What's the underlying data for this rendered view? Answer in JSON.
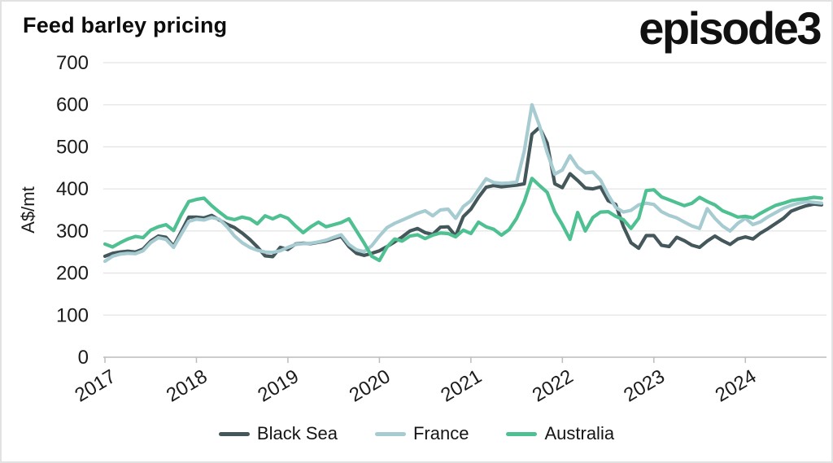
{
  "header": {
    "title": "Feed barley pricing",
    "logo": "episode3"
  },
  "chart_data": {
    "type": "line",
    "title": "Feed barley pricing",
    "xlabel": "",
    "ylabel": "A$/mt",
    "ylim": [
      0,
      700
    ],
    "yticks": [
      0,
      100,
      200,
      300,
      400,
      500,
      600,
      700
    ],
    "grid": "horizontal",
    "legend_position": "bottom",
    "x_unit": "month",
    "x_start": "2017-01",
    "x_end": "2024-11",
    "xtick_labels": [
      "2017",
      "2018",
      "2019",
      "2020",
      "2021",
      "2022",
      "2023",
      "2024"
    ],
    "xtick_month_indices": [
      0,
      12,
      24,
      36,
      48,
      60,
      72,
      84
    ],
    "series": [
      {
        "name": "Black Sea",
        "color": "#44575b",
        "values": [
          240,
          247,
          250,
          252,
          250,
          257,
          276,
          288,
          285,
          264,
          298,
          333,
          333,
          331,
          337,
          326,
          316,
          308,
          295,
          280,
          262,
          241,
          239,
          261,
          256,
          269,
          271,
          270,
          273,
          276,
          282,
          287,
          263,
          247,
          242,
          247,
          253,
          263,
          274,
          286,
          300,
          306,
          296,
          292,
          309,
          310,
          288,
          334,
          352,
          380,
          404,
          408,
          405,
          407,
          409,
          412,
          530,
          546,
          509,
          412,
          403,
          436,
          420,
          402,
          400,
          405,
          372,
          363,
          311,
          272,
          259,
          289,
          289,
          266,
          263,
          285,
          277,
          266,
          261,
          276,
          288,
          277,
          268,
          281,
          286,
          281,
          295,
          306,
          318,
          330,
          347,
          354,
          360,
          364,
          362
        ]
      },
      {
        "name": "France",
        "color": "#a6cbd1",
        "values": [
          228,
          240,
          245,
          247,
          246,
          253,
          272,
          284,
          280,
          261,
          292,
          323,
          328,
          326,
          332,
          328,
          310,
          288,
          272,
          261,
          254,
          250,
          249,
          253,
          261,
          268,
          270,
          271,
          274,
          278,
          285,
          291,
          268,
          255,
          251,
          265,
          288,
          308,
          318,
          326,
          334,
          342,
          348,
          336,
          350,
          352,
          330,
          358,
          372,
          398,
          424,
          415,
          413,
          414,
          416,
          490,
          600,
          550,
          487,
          435,
          445,
          479,
          452,
          438,
          440,
          421,
          386,
          356,
          345,
          349,
          362,
          366,
          363,
          346,
          337,
          331,
          321,
          312,
          306,
          353,
          330,
          312,
          300,
          318,
          330,
          315,
          322,
          334,
          344,
          354,
          361,
          366,
          370,
          368,
          366
        ]
      },
      {
        "name": "Australia",
        "color": "#4ec091",
        "values": [
          269,
          262,
          272,
          281,
          287,
          284,
          302,
          310,
          315,
          301,
          338,
          370,
          375,
          378,
          360,
          345,
          331,
          327,
          333,
          329,
          317,
          336,
          329,
          337,
          330,
          312,
          296,
          310,
          321,
          310,
          315,
          320,
          329,
          300,
          271,
          240,
          230,
          262,
          281,
          276,
          288,
          291,
          282,
          290,
          295,
          294,
          286,
          302,
          294,
          321,
          310,
          304,
          290,
          303,
          330,
          370,
          425,
          408,
          392,
          345,
          315,
          280,
          344,
          300,
          332,
          345,
          346,
          335,
          327,
          306,
          330,
          396,
          398,
          381,
          374,
          367,
          360,
          366,
          380,
          370,
          362,
          348,
          341,
          333,
          335,
          331,
          342,
          352,
          361,
          366,
          372,
          375,
          377,
          380,
          378
        ]
      }
    ]
  }
}
